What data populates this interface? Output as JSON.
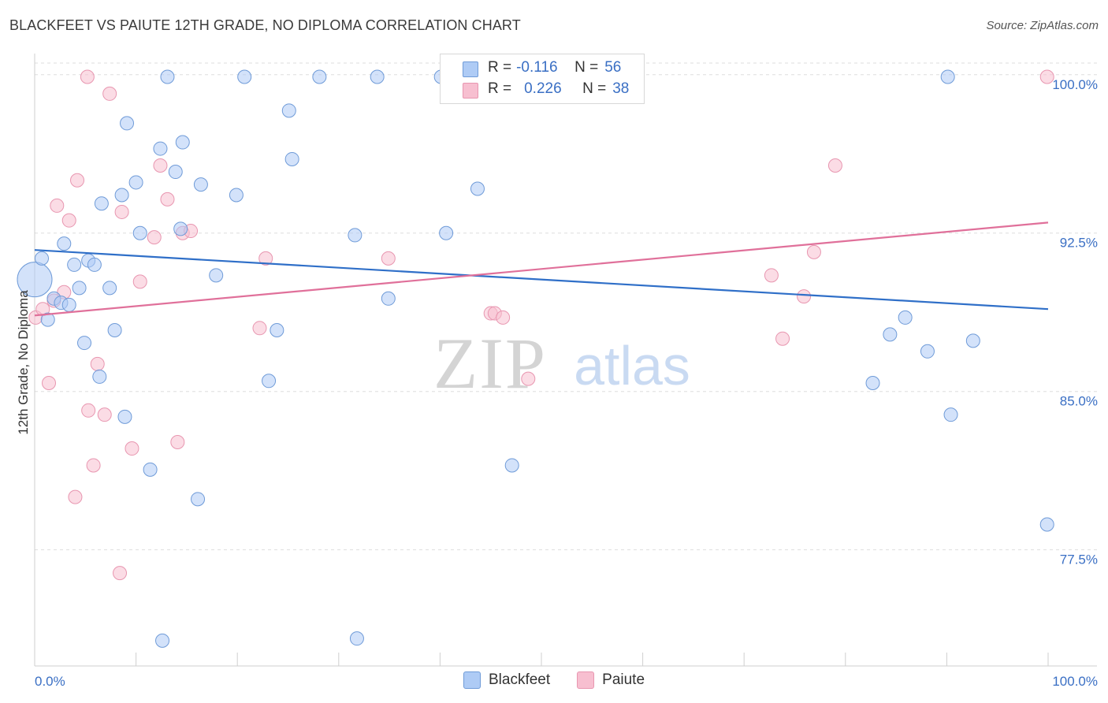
{
  "title": "BLACKFEET VS PAIUTE 12TH GRADE, NO DIPLOMA CORRELATION CHART",
  "source": "Source: ZipAtlas.com",
  "watermark": {
    "zip": "ZIP",
    "atlas": "atlas"
  },
  "colors": {
    "blackfeet_fill": "#aecbf5",
    "blackfeet_stroke": "#6f9bd8",
    "blackfeet_line": "#2f6fc8",
    "paiute_fill": "#f7bfd0",
    "paiute_stroke": "#e896b0",
    "paiute_line": "#e0709a",
    "tick_label": "#3a6fc4",
    "grid": "#dedede"
  },
  "stats": {
    "r_label": "R =",
    "n_label": "N =",
    "blackfeet": {
      "r": "-0.116",
      "n": "56"
    },
    "paiute": {
      "r": "0.226",
      "n": "38"
    }
  },
  "legend": {
    "blackfeet": "Blackfeet",
    "paiute": "Paiute"
  },
  "chart_data": {
    "type": "scatter",
    "xlabel": "",
    "ylabel": "12th Grade, No Diploma",
    "xlim": [
      0,
      100
    ],
    "ylim": [
      72,
      101
    ],
    "x_ticks": [
      "0.0%",
      "100.0%"
    ],
    "y_ticks": [
      {
        "value": 100,
        "label": "100.0%"
      },
      {
        "value": 92.5,
        "label": "92.5%"
      },
      {
        "value": 85,
        "label": "85.0%"
      },
      {
        "value": 77.5,
        "label": "77.5%"
      }
    ],
    "series": [
      {
        "name": "Blackfeet",
        "trend": {
          "x": [
            0,
            100
          ],
          "y": [
            91.7,
            88.9
          ]
        },
        "points": [
          {
            "x": 0.0,
            "y": 90.3,
            "big": true
          },
          {
            "x": 0.7,
            "y": 91.3
          },
          {
            "x": 1.3,
            "y": 88.4
          },
          {
            "x": 1.9,
            "y": 89.4
          },
          {
            "x": 2.6,
            "y": 89.2
          },
          {
            "x": 2.9,
            "y": 92.0
          },
          {
            "x": 3.4,
            "y": 89.1
          },
          {
            "x": 3.9,
            "y": 91.0
          },
          {
            "x": 4.4,
            "y": 89.9
          },
          {
            "x": 4.9,
            "y": 87.3
          },
          {
            "x": 5.3,
            "y": 91.2
          },
          {
            "x": 5.9,
            "y": 91.0
          },
          {
            "x": 6.4,
            "y": 85.7
          },
          {
            "x": 6.6,
            "y": 93.9
          },
          {
            "x": 7.4,
            "y": 89.9
          },
          {
            "x": 7.9,
            "y": 87.9
          },
          {
            "x": 8.6,
            "y": 94.3
          },
          {
            "x": 8.9,
            "y": 83.8
          },
          {
            "x": 9.1,
            "y": 97.7
          },
          {
            "x": 10.0,
            "y": 94.9
          },
          {
            "x": 10.4,
            "y": 92.5
          },
          {
            "x": 11.4,
            "y": 81.3
          },
          {
            "x": 12.4,
            "y": 96.5
          },
          {
            "x": 12.6,
            "y": 73.2
          },
          {
            "x": 13.1,
            "y": 99.9
          },
          {
            "x": 13.9,
            "y": 95.4
          },
          {
            "x": 14.4,
            "y": 92.7
          },
          {
            "x": 14.6,
            "y": 96.8
          },
          {
            "x": 16.1,
            "y": 79.9
          },
          {
            "x": 16.4,
            "y": 94.8
          },
          {
            "x": 17.9,
            "y": 90.5
          },
          {
            "x": 19.9,
            "y": 94.3
          },
          {
            "x": 20.7,
            "y": 99.9
          },
          {
            "x": 23.1,
            "y": 85.5
          },
          {
            "x": 23.9,
            "y": 87.9
          },
          {
            "x": 25.1,
            "y": 98.3
          },
          {
            "x": 25.4,
            "y": 96.0
          },
          {
            "x": 28.1,
            "y": 99.9
          },
          {
            "x": 31.6,
            "y": 92.4
          },
          {
            "x": 31.8,
            "y": 73.3
          },
          {
            "x": 33.8,
            "y": 99.9
          },
          {
            "x": 34.9,
            "y": 89.4
          },
          {
            "x": 40.1,
            "y": 99.9
          },
          {
            "x": 40.6,
            "y": 92.5
          },
          {
            "x": 43.7,
            "y": 94.6
          },
          {
            "x": 47.1,
            "y": 81.5
          },
          {
            "x": 47.6,
            "y": 99.9
          },
          {
            "x": 50.3,
            "y": 99.9
          },
          {
            "x": 82.7,
            "y": 85.4
          },
          {
            "x": 84.4,
            "y": 87.7
          },
          {
            "x": 85.9,
            "y": 88.5
          },
          {
            "x": 88.1,
            "y": 86.9
          },
          {
            "x": 90.1,
            "y": 99.9
          },
          {
            "x": 90.4,
            "y": 83.9
          },
          {
            "x": 92.6,
            "y": 87.4
          },
          {
            "x": 99.9,
            "y": 78.7
          }
        ]
      },
      {
        "name": "Paiute",
        "trend": {
          "x": [
            0,
            100
          ],
          "y": [
            88.6,
            93.0
          ]
        },
        "points": [
          {
            "x": 0.1,
            "y": 88.5
          },
          {
            "x": 0.8,
            "y": 88.9
          },
          {
            "x": 1.4,
            "y": 85.4
          },
          {
            "x": 1.9,
            "y": 89.3
          },
          {
            "x": 2.2,
            "y": 93.8
          },
          {
            "x": 2.9,
            "y": 89.7
          },
          {
            "x": 3.4,
            "y": 93.1
          },
          {
            "x": 4.0,
            "y": 80.0
          },
          {
            "x": 4.2,
            "y": 95.0
          },
          {
            "x": 5.2,
            "y": 99.9
          },
          {
            "x": 5.3,
            "y": 84.1
          },
          {
            "x": 5.8,
            "y": 81.5
          },
          {
            "x": 6.2,
            "y": 86.3
          },
          {
            "x": 6.9,
            "y": 83.9
          },
          {
            "x": 7.4,
            "y": 99.1
          },
          {
            "x": 8.4,
            "y": 76.4
          },
          {
            "x": 8.6,
            "y": 93.5
          },
          {
            "x": 9.6,
            "y": 82.3
          },
          {
            "x": 10.4,
            "y": 90.2
          },
          {
            "x": 11.8,
            "y": 92.3
          },
          {
            "x": 12.4,
            "y": 95.7
          },
          {
            "x": 13.1,
            "y": 94.1
          },
          {
            "x": 14.1,
            "y": 82.6
          },
          {
            "x": 14.6,
            "y": 92.5
          },
          {
            "x": 15.4,
            "y": 92.6
          },
          {
            "x": 22.2,
            "y": 88.0
          },
          {
            "x": 22.8,
            "y": 91.3
          },
          {
            "x": 34.9,
            "y": 91.3
          },
          {
            "x": 45.0,
            "y": 88.7
          },
          {
            "x": 45.4,
            "y": 88.7
          },
          {
            "x": 46.2,
            "y": 88.5
          },
          {
            "x": 48.7,
            "y": 85.6
          },
          {
            "x": 72.7,
            "y": 90.5
          },
          {
            "x": 73.8,
            "y": 87.5
          },
          {
            "x": 75.9,
            "y": 89.5
          },
          {
            "x": 76.9,
            "y": 91.6
          },
          {
            "x": 79.0,
            "y": 95.7
          },
          {
            "x": 99.9,
            "y": 99.9
          }
        ]
      }
    ]
  }
}
